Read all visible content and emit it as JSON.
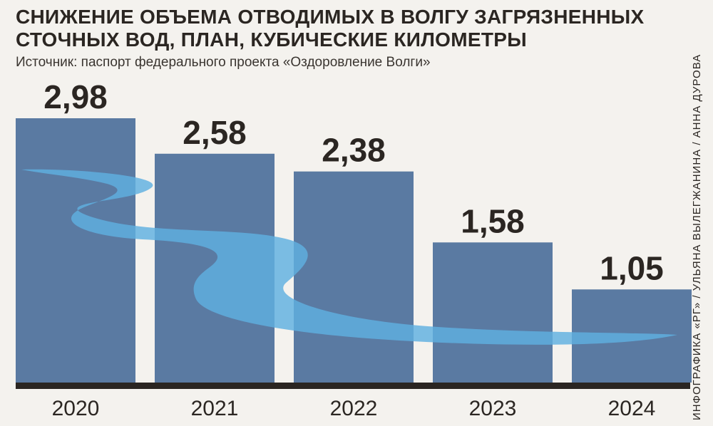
{
  "title": "СНИЖЕНИЕ ОБЪЕМА ОТВОДИМЫХ В ВОЛГУ ЗАГРЯЗНЕННЫХ СТОЧНЫХ ВОД, ПЛАН, КУБИЧЕСКИЕ КИЛОМЕТРЫ",
  "source": "Источник: паспорт федерального проекта «Оздоровление Волги»",
  "credit": "ИНФОГРАФИКА «РГ» / УЛЬЯНА ВЫЛЕГЖАНИНА / АННА ДУРОВА",
  "colors": {
    "bar": "#5a7aa2",
    "river": "#5fb0e0",
    "baseline": "#2a2522",
    "background": "#f4f2ee"
  },
  "chart_data": {
    "type": "bar",
    "categories": [
      "2020",
      "2021",
      "2022",
      "2023",
      "2024"
    ],
    "values": [
      2.98,
      2.58,
      2.38,
      1.58,
      1.05
    ],
    "value_labels": [
      "2,98",
      "2,58",
      "2,38",
      "1,58",
      "1,05"
    ],
    "ylim": [
      0,
      3.2
    ],
    "grid": false,
    "legend": "none"
  }
}
